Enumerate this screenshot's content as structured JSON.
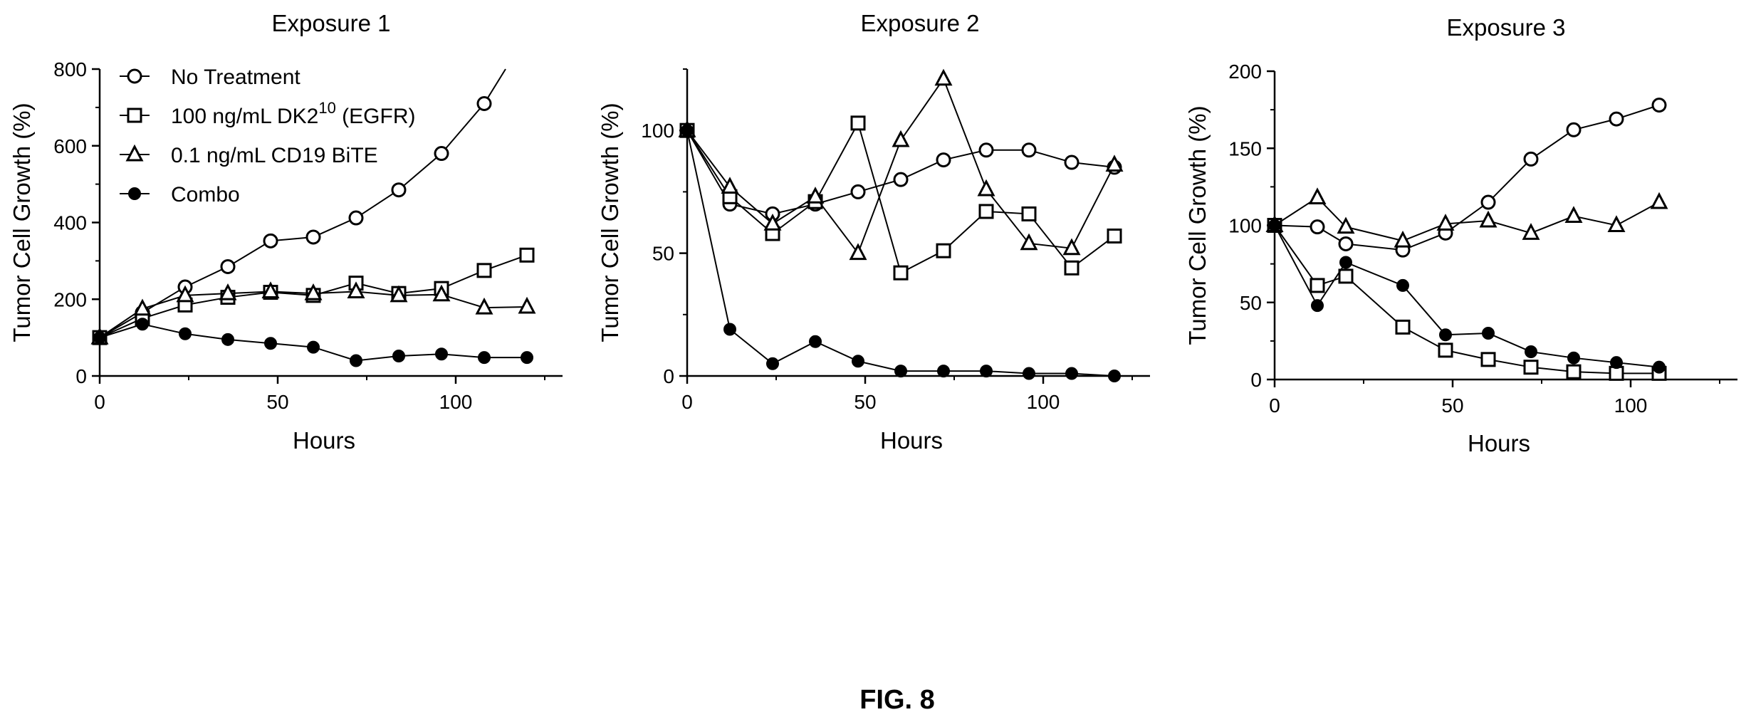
{
  "figure_label": "FIG. 8",
  "legend": [
    {
      "label": "No Treatment",
      "marker": "open-circle"
    },
    {
      "label": "100 ng/mL DK2",
      "sup": "10",
      "tail": " (EGFR)",
      "marker": "open-square"
    },
    {
      "label": "0.1 ng/mL CD19 BiTE",
      "marker": "open-triangle"
    },
    {
      "label": "Combo",
      "marker": "filled-circle"
    }
  ],
  "chart_data": [
    {
      "type": "line",
      "title": "Exposure 1",
      "xlabel": "Hours",
      "ylabel": "Tumor Cell Growth (%)",
      "xlim": [
        0,
        130
      ],
      "ylim": [
        0,
        800
      ],
      "xticks": [
        0,
        50,
        100
      ],
      "yticks": [
        0,
        200,
        400,
        600,
        800
      ],
      "series": [
        {
          "name": "No Treatment",
          "marker": "open-circle",
          "x": [
            0,
            12,
            24,
            36,
            48,
            60,
            72,
            84,
            96,
            108
          ],
          "y": [
            100,
            165,
            232,
            285,
            352,
            362,
            412,
            485,
            580,
            710
          ],
          "extends_to": [
            114,
            800
          ]
        },
        {
          "name": "100 ng/mL DK2 (EGFR)",
          "marker": "open-square",
          "x": [
            0,
            12,
            24,
            36,
            48,
            60,
            72,
            84,
            96,
            108,
            120
          ],
          "y": [
            100,
            150,
            185,
            205,
            218,
            210,
            242,
            215,
            228,
            275,
            315
          ]
        },
        {
          "name": "0.1 ng/mL CD19 BiTE",
          "marker": "open-triangle",
          "x": [
            0,
            12,
            24,
            36,
            48,
            60,
            72,
            84,
            96,
            108,
            120
          ],
          "y": [
            100,
            175,
            210,
            215,
            220,
            215,
            220,
            210,
            212,
            178,
            180
          ]
        },
        {
          "name": "Combo",
          "marker": "filled-circle",
          "x": [
            0,
            12,
            24,
            36,
            48,
            60,
            72,
            84,
            96,
            108,
            120
          ],
          "y": [
            100,
            135,
            110,
            95,
            85,
            75,
            40,
            52,
            57,
            48,
            48
          ]
        }
      ]
    },
    {
      "type": "line",
      "title": "Exposure 2",
      "xlabel": "Hours",
      "ylabel": "Tumor Cell Growth (%)",
      "xlim": [
        0,
        130
      ],
      "ylim": [
        0,
        125
      ],
      "xticks": [
        0,
        50,
        100
      ],
      "yticks": [
        0,
        50,
        100
      ],
      "series": [
        {
          "name": "No Treatment",
          "marker": "open-circle",
          "x": [
            0,
            12,
            24,
            36,
            48,
            60,
            72,
            84,
            96,
            108,
            120
          ],
          "y": [
            100,
            70,
            66,
            70,
            75,
            80,
            88,
            92,
            92,
            87,
            85
          ]
        },
        {
          "name": "100 ng/mL DK2 (EGFR)",
          "marker": "open-square",
          "x": [
            0,
            12,
            24,
            36,
            48,
            60,
            72,
            84,
            96,
            108,
            120
          ],
          "y": [
            100,
            73,
            58,
            71,
            103,
            42,
            51,
            67,
            66,
            44,
            57
          ]
        },
        {
          "name": "0.1 ng/mL CD19 BiTE",
          "marker": "open-triangle",
          "x": [
            0,
            12,
            24,
            36,
            48,
            60,
            72,
            84,
            96,
            108,
            120
          ],
          "y": [
            100,
            77,
            62,
            73,
            50,
            96,
            121,
            76,
            54,
            52,
            86
          ]
        },
        {
          "name": "Combo",
          "marker": "filled-circle",
          "x": [
            0,
            12,
            24,
            36,
            48,
            60,
            72,
            84,
            96,
            108,
            120
          ],
          "y": [
            100,
            19,
            5,
            14,
            6,
            2,
            2,
            2,
            1,
            1,
            0
          ]
        }
      ]
    },
    {
      "type": "line",
      "title": "Exposure 3",
      "xlabel": "Hours",
      "ylabel": "Tumor Cell Growth (%)",
      "xlim": [
        0,
        130
      ],
      "ylim": [
        0,
        200
      ],
      "xticks": [
        0,
        50,
        100
      ],
      "yticks": [
        0,
        50,
        100,
        150,
        200
      ],
      "series": [
        {
          "name": "No Treatment",
          "marker": "open-circle",
          "x": [
            0,
            12,
            20,
            36,
            48,
            60,
            72,
            84,
            96,
            108
          ],
          "y": [
            100,
            99,
            88,
            84,
            95,
            115,
            143,
            162,
            169,
            178
          ]
        },
        {
          "name": "100 ng/mL DK2 (EGFR)",
          "marker": "open-square",
          "x": [
            0,
            12,
            20,
            36,
            48,
            60,
            72,
            84,
            96,
            108
          ],
          "y": [
            100,
            61,
            67,
            34,
            19,
            13,
            8,
            5,
            4,
            4
          ]
        },
        {
          "name": "0.1 ng/mL CD19 BiTE",
          "marker": "open-triangle",
          "x": [
            0,
            12,
            20,
            36,
            48,
            60,
            72,
            84,
            96,
            108
          ],
          "y": [
            100,
            118,
            99,
            90,
            101,
            103,
            95,
            106,
            100,
            115
          ]
        },
        {
          "name": "Combo",
          "marker": "filled-circle",
          "x": [
            0,
            12,
            20,
            36,
            48,
            60,
            72,
            84,
            96,
            108
          ],
          "y": [
            100,
            48,
            76,
            61,
            29,
            30,
            18,
            14,
            11,
            8
          ]
        }
      ]
    }
  ]
}
